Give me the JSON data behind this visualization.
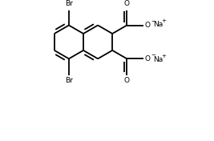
{
  "bg_color": "#ffffff",
  "line_color": "#000000",
  "line_width": 1.3,
  "fig_width": 2.67,
  "fig_height": 1.76,
  "dpi": 100,
  "font_size": 6.5,
  "na_font_size": 6.5,
  "charge_font_size": 5.0,
  "BL": 0.85,
  "jx": 0.38,
  "jy": 0.5,
  "xlim": [
    0,
    1
  ],
  "ylim": [
    0,
    0.659
  ]
}
